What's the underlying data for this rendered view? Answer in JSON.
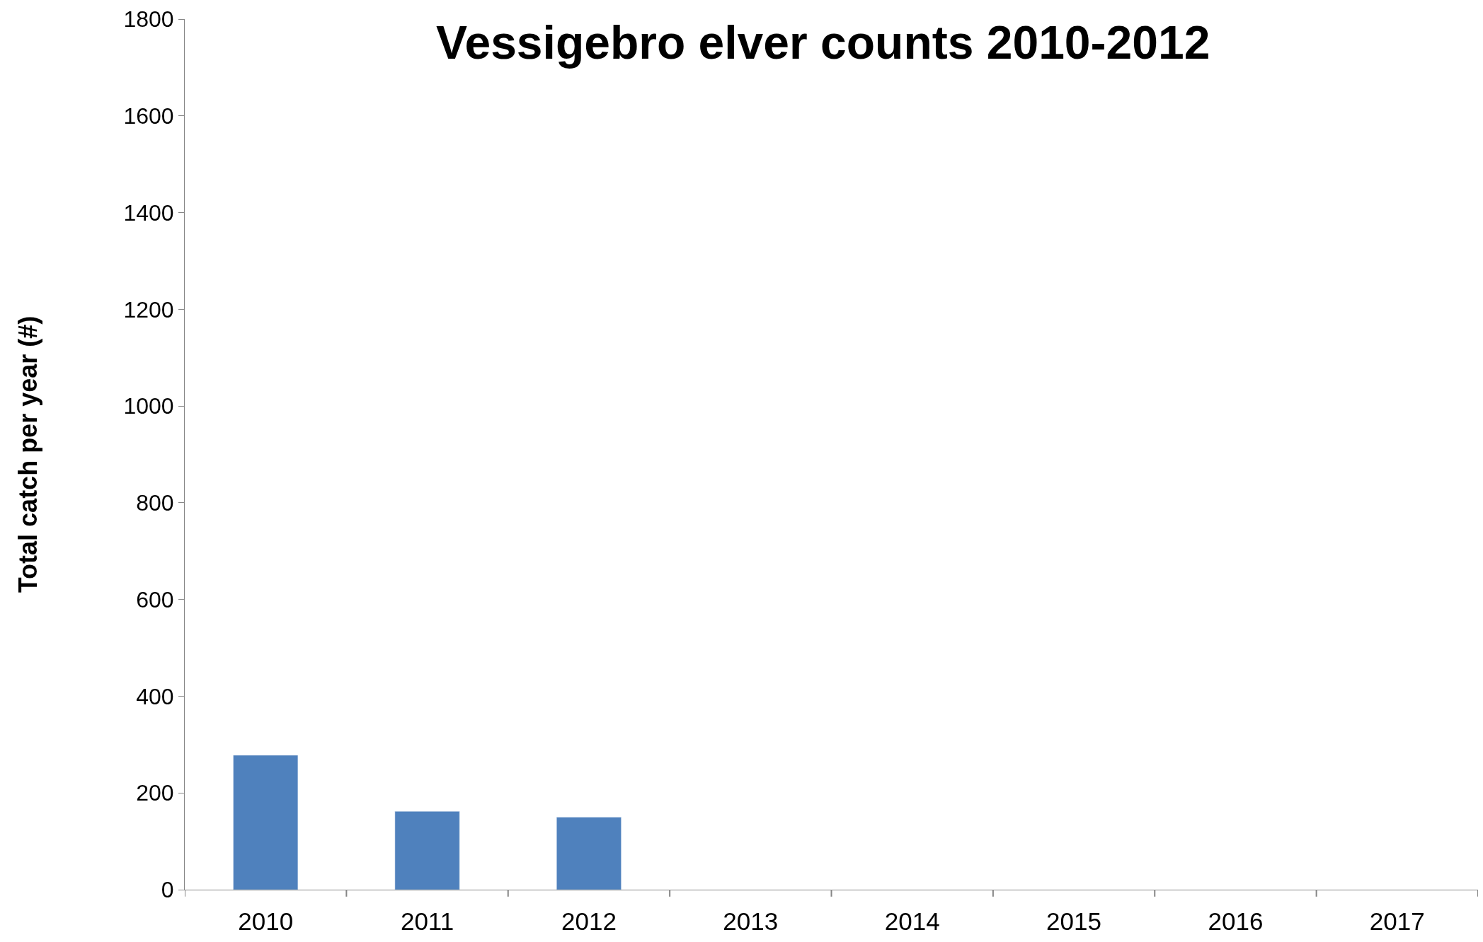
{
  "chart_data": {
    "type": "bar",
    "title": "Vessigebro elver counts 2010-2012",
    "ylabel": "Total catch per year (#)",
    "categories": [
      "2010",
      "2011",
      "2012",
      "2013",
      "2014",
      "2015",
      "2016",
      "2017"
    ],
    "values": [
      278,
      162,
      150,
      null,
      null,
      null,
      null,
      null
    ],
    "color": "#4f81bd",
    "ylim": [
      0,
      1800
    ],
    "yticks": [
      0,
      200,
      400,
      600,
      800,
      1000,
      1200,
      1400,
      1600,
      1800
    ],
    "legend": false
  }
}
